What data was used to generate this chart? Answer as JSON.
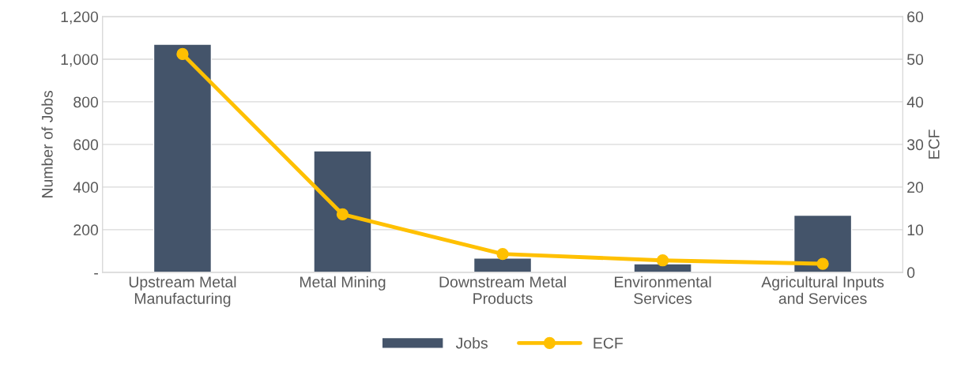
{
  "chart_data": {
    "type": "bar",
    "categories": [
      "Upstream Metal\nManufacturing",
      "Metal Mining",
      "Downstream Metal\nProducts",
      "Environmental\nServices",
      "Agricultural Inputs\nand Services"
    ],
    "ylabel": "Number of Jobs",
    "y2label": "ECF",
    "series": [
      {
        "name": "Jobs",
        "color": "#44546a",
        "values": [
          1070,
          570,
          67,
          40,
          268
        ]
      },
      {
        "name": "ECF",
        "type": "line",
        "axis": "y2",
        "color": "#ffc000",
        "marker": "circle",
        "values": [
          51.2,
          13.6,
          4.3,
          2.8,
          2.0
        ]
      }
    ],
    "ylim": [
      0,
      1200
    ],
    "yticks": [
      {
        "value": 0,
        "label": "-"
      },
      {
        "value": 200,
        "label": "200"
      },
      {
        "value": 400,
        "label": "400"
      },
      {
        "value": 600,
        "label": "600"
      },
      {
        "value": 800,
        "label": "800"
      },
      {
        "value": 1000,
        "label": "1,000"
      },
      {
        "value": 1200,
        "label": "1,200"
      }
    ],
    "y2lim": [
      0,
      60
    ],
    "y2ticks": [
      0,
      10,
      20,
      30,
      40,
      50,
      60
    ],
    "grid": "y",
    "legend": "bottom"
  }
}
